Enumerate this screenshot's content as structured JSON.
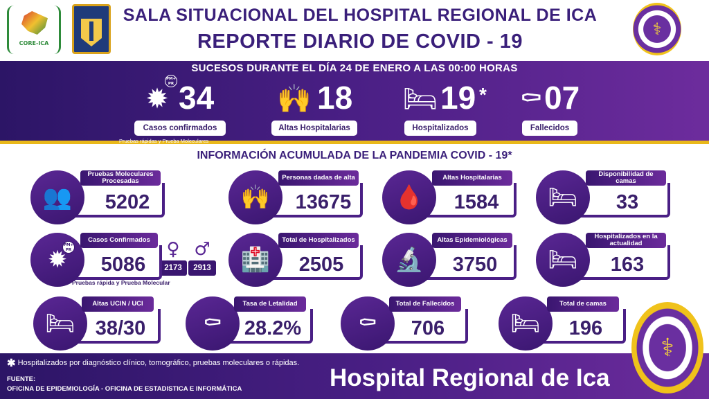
{
  "header": {
    "logo_left_text": "CORE-ICA",
    "title_line1": "SALA SITUACIONAL DEL HOSPITAL REGIONAL DE ICA",
    "title_line2": "REPORTE DIARIO DE COVID - 19"
  },
  "daily": {
    "title": "SUCESOS DURANTE EL DÍA 24 DE ENERO A LAS 00:00 HORAS",
    "items": [
      {
        "value": "34",
        "label": "Casos confirmados",
        "sub": "Pruebas rápidas y Prueba Moleculares",
        "badge": "PM+ PR",
        "icon": "virus-icon"
      },
      {
        "value": "18",
        "label": "Altas Hospitalarias",
        "icon": "celebrating-people-icon"
      },
      {
        "value": "19",
        "suffix": "*",
        "label": "Hospitalizados",
        "icon": "hospital-bed-icon"
      },
      {
        "value": "07",
        "label": "Fallecidos",
        "icon": "coffin-icon"
      }
    ]
  },
  "accumulated": {
    "title": "INFORMACIÓN ACUMULADA DE LA PANDEMIA COVID - 19*",
    "cards": [
      {
        "label": "Pruebas Moleculares Procesadas",
        "value": "5202",
        "icon": "people-group-icon"
      },
      {
        "label": "Personas dadas de alta",
        "value": "13675",
        "icon": "celebrating-people-icon"
      },
      {
        "label": "Altas Hospitalarias",
        "value": "1584",
        "icon": "iv-drip-icon"
      },
      {
        "label": "Disponibilidad de camas",
        "value": "33",
        "icon": "hospital-bed-cross-icon"
      },
      {
        "label": "Casos Confirmados",
        "value": "5086",
        "icon": "virus-icon",
        "badge": "PM+ PR",
        "note": "Pruebas rápida y Prueba Molecular"
      },
      {
        "label": "Total de Hospitalizados",
        "value": "2505",
        "icon": "hospital-building-icon"
      },
      {
        "label": "Altas Epidemiológicas",
        "value": "3750",
        "icon": "microscope-icon"
      },
      {
        "label": "Hospitalizados en la actualidad",
        "value": "163",
        "icon": "hospital-bed-cross-icon"
      },
      {
        "label": "Altas UCIN / UCI",
        "value": "38/30",
        "icon": "icu-bed-icon"
      },
      {
        "label": "Tasa de Letalidad",
        "value": "28.2%",
        "icon": "coffin-icon"
      },
      {
        "label": "Total de Fallecidos",
        "value": "706",
        "icon": "coffin-icon"
      },
      {
        "label": "Total de camas",
        "value": "196",
        "icon": "bed-icon"
      }
    ],
    "gender": {
      "female": {
        "symbol": "♀",
        "value": "2173"
      },
      "male": {
        "symbol": "♂",
        "value": "2913"
      }
    }
  },
  "footer": {
    "asterisk": "✱",
    "note": "Hospitalizados por diagnóstico clínico, tomográfico, pruebas moleculares o rápidas.",
    "fuente_label": "FUENTE:",
    "fuente_text": "OFICINA DE EPIDEMIOLOGÍA  -  OFICINA DE ESTADISTICA E INFORMÁTICA",
    "hospital_name": "Hospital Regional de Ica"
  },
  "colors": {
    "primary_purple": "#4a1f85",
    "dark_purple": "#2c1566",
    "accent_gold": "#e9b81a",
    "text_purple": "#3a1f6b"
  }
}
